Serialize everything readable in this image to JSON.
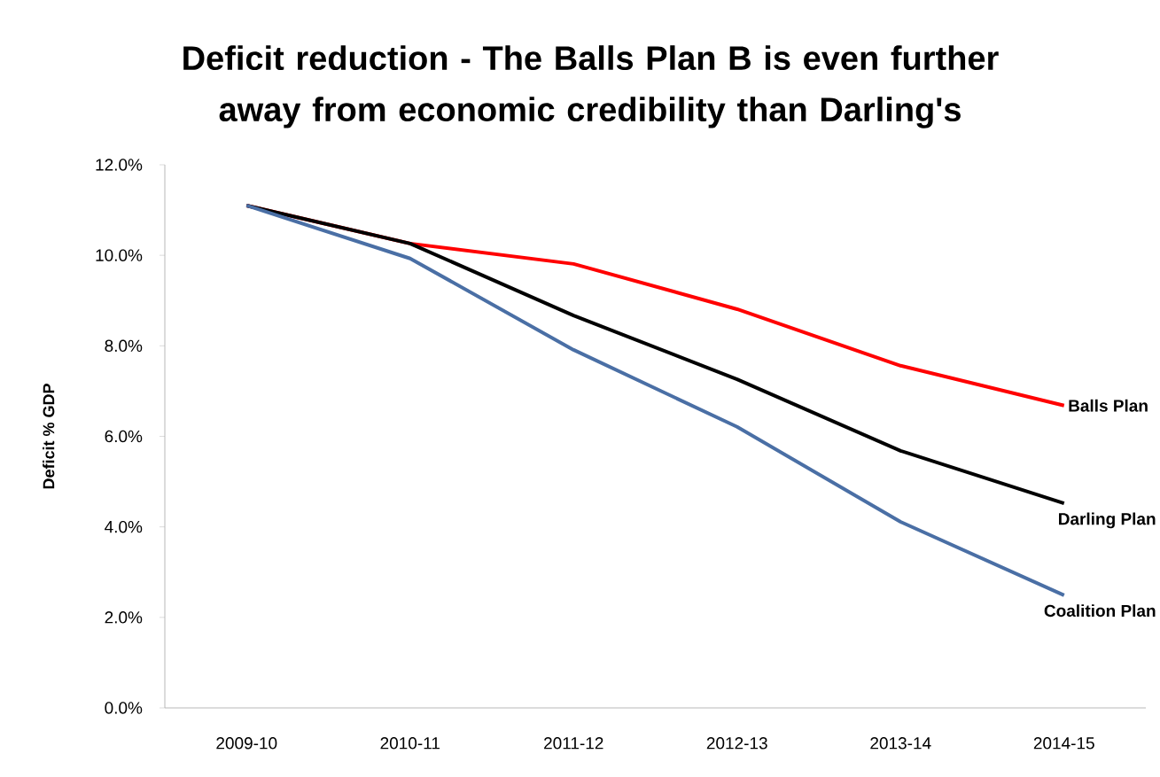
{
  "chart_data": {
    "type": "line",
    "title": "Deficit reduction - The Balls Plan B is even further away from economic credibility than Darling's",
    "ylabel": "Deficit % GDP",
    "categories": [
      "2009-10",
      "2010-11",
      "2011-12",
      "2012-13",
      "2013-14",
      "2014-15"
    ],
    "series": [
      {
        "name": "Balls Plan",
        "color": "#ff0000",
        "values": [
          11.1,
          10.26,
          9.81,
          8.81,
          7.56,
          6.68
        ]
      },
      {
        "name": "Darling Plan",
        "color": "#000000",
        "values": [
          11.1,
          10.26,
          8.67,
          7.26,
          5.68,
          4.52
        ]
      },
      {
        "name": "Coalition Plan",
        "color": "#4a6fa5",
        "values": [
          11.1,
          9.93,
          7.91,
          6.21,
          4.11,
          2.49
        ]
      }
    ],
    "ylim": [
      0,
      12
    ],
    "yticks": [
      {
        "value": 0,
        "label": "0.0%"
      },
      {
        "value": 2,
        "label": "2.0%"
      },
      {
        "value": 4,
        "label": "4.0%"
      },
      {
        "value": 6,
        "label": "6.0%"
      },
      {
        "value": 8,
        "label": "8.0%"
      },
      {
        "value": 10,
        "label": "10.0%"
      },
      {
        "value": 12,
        "label": "12.0%"
      }
    ]
  }
}
